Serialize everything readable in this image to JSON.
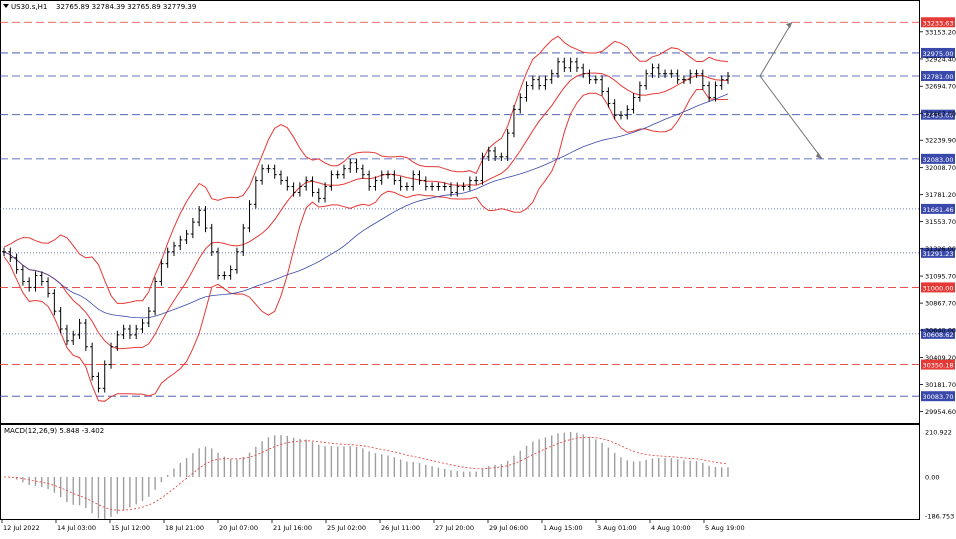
{
  "header": {
    "symbol_label": "US30.s,H1",
    "ohlc_label": "32765.89 32784.39 32765.89 32779.39"
  },
  "macd": {
    "label": "MACD(12,26,9) 5.848 -3.402",
    "axis_ticks": [
      "210.922",
      "0.00",
      "-186.753"
    ]
  },
  "price_axis": {
    "ticks": [
      33153.2,
      32924.4,
      32694.7,
      32467.0,
      32239.9,
      32008.7,
      31781.2,
      31553.7,
      31326.0,
      31095.7,
      30867.7,
      30640.0,
      30409.2,
      30181.7,
      29954.6
    ],
    "tick_labels": [
      "33153.20",
      "32924.40",
      "32694.70",
      "32467.00",
      "32239.90",
      "32008.70",
      "31781.20",
      "31553.70",
      "31326.00",
      "31095.70",
      "30867.70",
      "30640.00",
      "30409.20",
      "30181.70",
      "29954.60"
    ]
  },
  "levels": [
    {
      "value": 33233.63,
      "label": "33233.63",
      "color": "#e53935",
      "style": "dashed"
    },
    {
      "value": 32975.0,
      "label": "32975.00",
      "color": "#3949ab",
      "style": "dashed"
    },
    {
      "value": 32781.0,
      "label": "32781.00",
      "color": "#3949ab",
      "style": "dashed"
    },
    {
      "value": 32455.0,
      "label": "32455.00",
      "color": "#3949ab",
      "style": "dashed"
    },
    {
      "value": 32083.0,
      "label": "32083.00",
      "color": "#3949ab",
      "style": "dashed"
    },
    {
      "value": 31661.46,
      "label": "31661.46",
      "color": "#3949ab",
      "style": "dotted"
    },
    {
      "value": 31291.23,
      "label": "31291.23",
      "color": "#3949ab",
      "style": "dotted"
    },
    {
      "value": 31000.0,
      "label": "31000.00",
      "color": "#e53935",
      "style": "dashed"
    },
    {
      "value": 30608.62,
      "label": "30608.62",
      "color": "#3949ab",
      "style": "dotted"
    },
    {
      "value": 30350.18,
      "label": "30350.18",
      "color": "#e53935",
      "style": "dashed"
    },
    {
      "value": 30083.7,
      "label": "30083.70",
      "color": "#3949ab",
      "style": "dashed"
    }
  ],
  "time_axis": {
    "labels": [
      "12 Jul 2022",
      "14 Jul 03:00",
      "15 Jul 12:00",
      "18 Jul 21:00",
      "20 Jul 07:00",
      "21 Jul 16:00",
      "25 Jul 02:00",
      "26 Jul 11:00",
      "27 Jul 20:00",
      "29 Jul 06:00",
      "1 Aug 15:00",
      "3 Aug 01:00",
      "4 Aug 10:00",
      "5 Aug 19:00"
    ]
  },
  "chart_data": {
    "type": "line",
    "title": "US30.s,H1",
    "x_labels": [
      "12 Jul 2022",
      "14 Jul 03:00",
      "15 Jul 12:00",
      "18 Jul 21:00",
      "20 Jul 07:00",
      "21 Jul 16:00",
      "25 Jul 02:00",
      "26 Jul 11:00",
      "27 Jul 20:00",
      "29 Jul 06:00",
      "1 Aug 15:00",
      "3 Aug 01:00",
      "4 Aug 10:00",
      "5 Aug 19:00"
    ],
    "ylim": [
      29900,
      33320
    ],
    "grid": false,
    "series": [
      {
        "name": "US30.s,H1",
        "color": "#000000",
        "values": [
          31300,
          31250,
          31150,
          31050,
          31000,
          31100,
          31050,
          30950,
          30800,
          30650,
          30550,
          30600,
          30700,
          30500,
          30250,
          30150,
          30350,
          30500,
          30600,
          30650,
          30600,
          30650,
          30700,
          30800,
          31050,
          31200,
          31300,
          31350,
          31400,
          31450,
          31550,
          31650,
          31500,
          31300,
          31100,
          31100,
          31150,
          31300,
          31500,
          31700,
          31900,
          32000,
          32000,
          31950,
          31900,
          31850,
          31800,
          31850,
          31900,
          31800,
          31750,
          31850,
          31950,
          31950,
          32000,
          32050,
          32000,
          31950,
          31850,
          31900,
          31950,
          31950,
          31900,
          31850,
          31850,
          31950,
          31900,
          31850,
          31850,
          31850,
          31850,
          31800,
          31850,
          31850,
          31900,
          31900,
          32100,
          32150,
          32100,
          32100,
          32300,
          32500,
          32600,
          32700,
          32750,
          32700,
          32750,
          32800,
          32900,
          32850,
          32900,
          32850,
          32800,
          32750,
          32750,
          32650,
          32550,
          32450,
          32450,
          32500,
          32600,
          32700,
          32800,
          32850,
          32800,
          32800,
          32800,
          32750,
          32750,
          32800,
          32800,
          32700,
          32600,
          32700,
          32750,
          32780
        ]
      }
    ],
    "projection": {
      "from": 32781.0,
      "up_target": 33233.63,
      "down_target": 32083.0
    }
  }
}
